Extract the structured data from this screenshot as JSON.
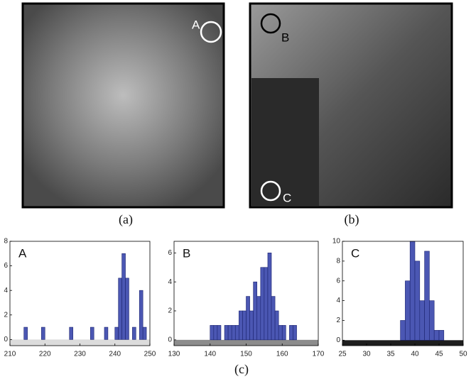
{
  "figure": {
    "panels": [
      {
        "caption": "(a)",
        "markers": [
          "A"
        ]
      },
      {
        "caption": "(b)",
        "markers": [
          "B",
          "C"
        ]
      }
    ],
    "caption": "(c)"
  },
  "chart_data": [
    {
      "type": "histogram",
      "annotation": "A",
      "bins": [
        213,
        214,
        215,
        216,
        217,
        218,
        219,
        220,
        221,
        222,
        223,
        224,
        225,
        226,
        227,
        228,
        229,
        230,
        231,
        232,
        233,
        234,
        235,
        236,
        237,
        238,
        239,
        240,
        241,
        242,
        243,
        244,
        245,
        246,
        247,
        248,
        249
      ],
      "values": [
        0,
        1,
        0,
        0,
        0,
        0,
        1,
        0,
        0,
        0,
        0,
        0,
        0,
        0,
        1,
        0,
        0,
        0,
        0,
        0,
        1,
        0,
        0,
        0,
        1,
        0,
        0,
        1,
        5,
        7,
        5,
        0,
        1,
        0,
        4,
        1
      ],
      "xlim": [
        210,
        250
      ],
      "xticks": [
        210,
        220,
        230,
        240,
        250
      ],
      "ylim": [
        -0.5,
        8
      ],
      "yticks": [
        0,
        2,
        4,
        6,
        8
      ],
      "color": "#4b57b3",
      "strip_color": "#dcdcdc"
    },
    {
      "type": "histogram",
      "annotation": "B",
      "bins": [
        140,
        141,
        142,
        143,
        144,
        145,
        146,
        147,
        148,
        149,
        150,
        151,
        152,
        153,
        154,
        155,
        156,
        157,
        158,
        159,
        160,
        161,
        162,
        163,
        164
      ],
      "values": [
        1,
        1,
        1,
        0,
        1,
        1,
        1,
        1,
        2,
        2,
        3,
        2,
        4,
        3,
        5,
        5,
        6,
        3,
        2,
        1,
        1,
        0,
        1,
        1
      ],
      "xlim": [
        130,
        170
      ],
      "xticks": [
        130,
        140,
        150,
        160,
        170
      ],
      "ylim": [
        -0.4,
        6.8
      ],
      "yticks": [
        0,
        2,
        4,
        6
      ],
      "color": "#4b57b3",
      "strip_color": "#8c8c8c"
    },
    {
      "type": "histogram",
      "annotation": "C",
      "bins": [
        37,
        38,
        39,
        40,
        41,
        42,
        43,
        44,
        45,
        46
      ],
      "values": [
        2,
        6,
        10,
        8,
        4,
        9,
        4,
        1,
        1
      ],
      "xlim": [
        25,
        50
      ],
      "xticks": [
        25,
        30,
        35,
        40,
        45,
        50
      ],
      "ylim": [
        -0.55,
        10
      ],
      "yticks": [
        0,
        2,
        4,
        6,
        8,
        10
      ],
      "color": "#4b57b3",
      "strip_color": "#1e1e1e"
    }
  ]
}
